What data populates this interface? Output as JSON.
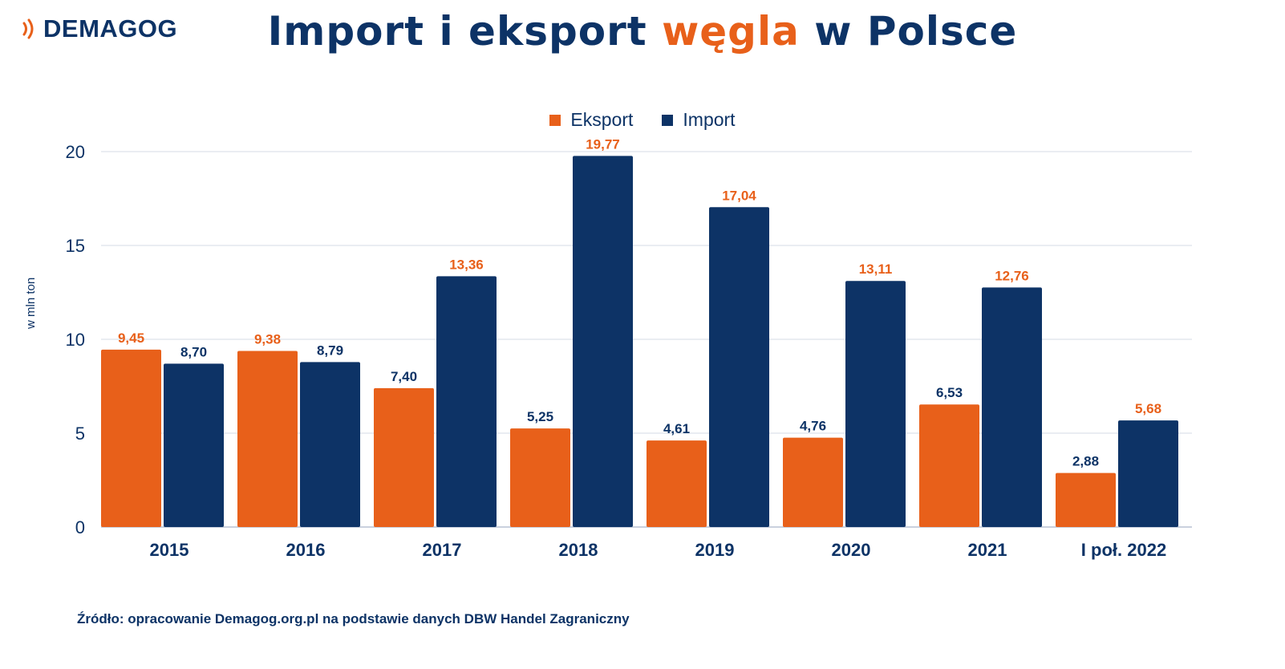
{
  "brand": {
    "logo_text": "DEMAGOG"
  },
  "header": {
    "title_before": "Import i eksport",
    "title_accent": "węgla",
    "title_after": "w Polsce"
  },
  "colors": {
    "export": "#e8601a",
    "import": "#0d3366",
    "text": "#0d3366",
    "grid": "#d4dbe6"
  },
  "footer": {
    "source": "Źródło: opracowanie Demagog.org.pl na podstawie danych DBW Handel Zagraniczny"
  },
  "chart_data": {
    "type": "bar",
    "ylabel": "w mln ton",
    "ylim": [
      0,
      20
    ],
    "yticks": [
      0,
      5,
      10,
      15,
      20
    ],
    "grid": true,
    "legend_position": "top-center",
    "categories": [
      "2015",
      "2016",
      "2017",
      "2018",
      "2019",
      "2020",
      "2021",
      "I poł. 2022"
    ],
    "series": [
      {
        "name": "Eksport",
        "values": [
          9.45,
          9.38,
          7.4,
          5.25,
          4.61,
          4.76,
          6.53,
          2.88
        ],
        "labels": [
          "9,45",
          "9,38",
          "7,40",
          "5,25",
          "4,61",
          "4,76",
          "6,53",
          "2,88"
        ]
      },
      {
        "name": "Import",
        "values": [
          8.7,
          8.79,
          13.36,
          19.77,
          17.04,
          13.11,
          12.76,
          5.68
        ],
        "labels": [
          "8,70",
          "8,79",
          "13,36",
          "19,77",
          "17,04",
          "13,11",
          "12,76",
          "5,68"
        ]
      }
    ]
  }
}
